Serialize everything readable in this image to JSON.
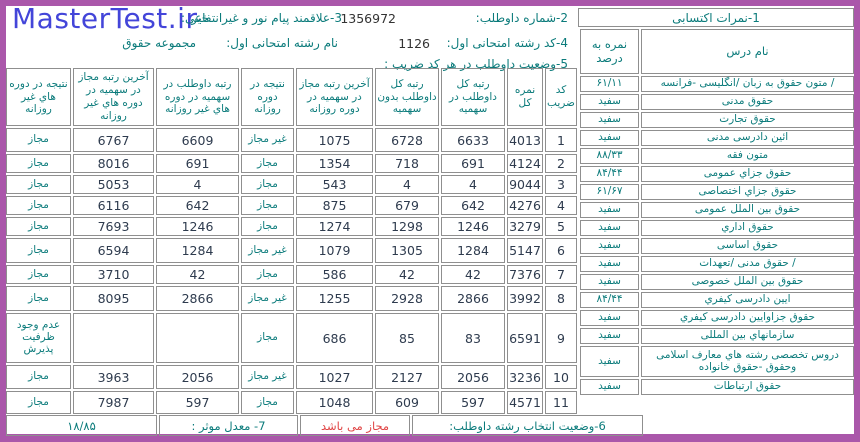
{
  "page": {
    "logo_text": "MasterTest.ir",
    "frame_color": "#aa57aa",
    "logo_color": "#4345d9",
    "teal_text_color": "#0b7b7b",
    "status_red_color": "#e04545"
  },
  "top_info": {
    "candidate_number_label": "2-شماره داوطلب:",
    "candidate_number": "1356972",
    "payam_noor_label": "3-علاقمند پیام نور و غیرانتفاعی:",
    "payam_noor_value": "خیر",
    "first_field_code_label": "4-کد رشته امتحانی اول:",
    "first_field_code": "1126",
    "first_field_name_label": "نام رشته امتحانی اول:",
    "first_field_name": "مجموعه حقوق",
    "coefficient_status_label": "5-وضعیت داوطلب در هر کد ضریب :"
  },
  "scores_table": {
    "title": "1-نمرات اکتسابی",
    "name_header": "نام درس",
    "score_header": "نمره به درصد",
    "rows": [
      {
        "name": "/ متون حقوق به زبان /انگلیسی -فرانسه",
        "score": "۶۱/۱۱"
      },
      {
        "name": "حقوق مدنی",
        "score": "سفید"
      },
      {
        "name": "حقوق تجارت",
        "score": "سفید"
      },
      {
        "name": "ائین دادرسی مدنی",
        "score": "سفید"
      },
      {
        "name": "متون فقه",
        "score": "۸۸/۳۳"
      },
      {
        "name": "حقوق جزاي عمومی",
        "score": "۸۴/۴۴"
      },
      {
        "name": "حقوق جزاي اختصاصی",
        "score": "۶۱/۶۷"
      },
      {
        "name": "حقوق بین الملل عمومی",
        "score": "سفید"
      },
      {
        "name": "حقوق اداري",
        "score": "سفید"
      },
      {
        "name": "حقوق اساسی",
        "score": "سفید"
      },
      {
        "name": "/ حقوق مدنی /تعهدات",
        "score": "سفید"
      },
      {
        "name": "حقوق بین الملل خصوصی",
        "score": "سفید"
      },
      {
        "name": "ایین دادرسی کیفري",
        "score": "۸۴/۴۴"
      },
      {
        "name": "حقوق جزاوایین دادرسی کیفري",
        "score": "سفید"
      },
      {
        "name": "سازمانهاي بین المللی",
        "score": "سفید"
      },
      {
        "name": "دروس تخصصی رشته هاي معارف اسلامی وحقوق -حقوق خانواده",
        "score": "سفید",
        "tall": true
      },
      {
        "name": "حقوق ارتباطات",
        "score": "سفید"
      }
    ]
  },
  "main_table": {
    "headers": [
      "کد ضریب",
      "نمره کل",
      "رتبه کل داوطلب در سهمیه",
      "رتبه کل داوطلب بدون سهمیه",
      "آخرین رتبه مجاز در سهمیه در دوره روزانه",
      "نتیجه در دوره روزانه",
      "رتبه داوطلب در سهمیه در دوره هاي غیر روزانه",
      "آخرین رتبه مجاز در سهمیه در دوره هاي غیر روزانه",
      "نتیجه در دوره هاي غیر روزانه"
    ],
    "rows": [
      [
        "1",
        "4013",
        "6633",
        "6728",
        "1075",
        "غیر مجاز",
        "6609",
        "6767",
        "مجاز"
      ],
      [
        "2",
        "4124",
        "691",
        "718",
        "1354",
        "مجاز",
        "691",
        "8016",
        "مجاز"
      ],
      [
        "3",
        "9044",
        "4",
        "4",
        "543",
        "مجاز",
        "4",
        "5053",
        "مجاز"
      ],
      [
        "4",
        "4276",
        "642",
        "679",
        "875",
        "مجاز",
        "642",
        "6116",
        "مجاز"
      ],
      [
        "5",
        "3279",
        "1246",
        "1298",
        "1274",
        "مجاز",
        "1246",
        "7693",
        "مجاز"
      ],
      [
        "6",
        "5147",
        "1284",
        "1305",
        "1079",
        "غیر مجاز",
        "1284",
        "6594",
        "مجاز"
      ],
      [
        "7",
        "7376",
        "42",
        "42",
        "586",
        "مجاز",
        "42",
        "3710",
        "مجاز"
      ],
      [
        "8",
        "3992",
        "2866",
        "2928",
        "1255",
        "غیر مجاز",
        "2866",
        "8095",
        "مجاز"
      ],
      [
        "9",
        "6591",
        "83",
        "85",
        "686",
        "مجاز",
        "",
        "",
        "عدم وجود ظرفیت پذیرش"
      ],
      [
        "10",
        "3236",
        "2056",
        "2127",
        "1027",
        "غیر مجاز",
        "2056",
        "3963",
        "مجاز"
      ],
      [
        "11",
        "4571",
        "597",
        "609",
        "1048",
        "مجاز",
        "597",
        "7987",
        "مجاز"
      ]
    ]
  },
  "footer": {
    "selection_status_label": "6-وضعیت انتخاب رشته داوطلب:",
    "selection_status_value": "مجاز می باشد",
    "gpa_label": "7- معدل موثر :",
    "gpa_value": "۱۸/۸۵"
  }
}
